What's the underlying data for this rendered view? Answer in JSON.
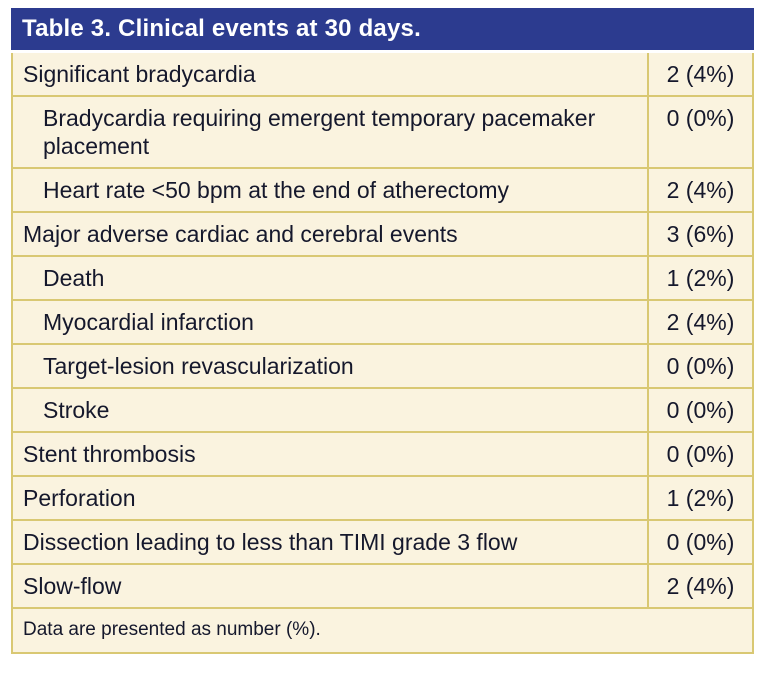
{
  "table": {
    "title": "Table 3. Clinical events at 30 days.",
    "columns": [
      "event",
      "count_percent"
    ],
    "rows": [
      {
        "label": "Significant bradycardia",
        "value": "2 (4%)",
        "indent": false
      },
      {
        "label": "Bradycardia requiring emergent temporary pacemaker placement",
        "value": "0 (0%)",
        "indent": true
      },
      {
        "label": "Heart rate <50 bpm at the end of atherectomy",
        "value": "2 (4%)",
        "indent": true
      },
      {
        "label": "Major adverse cardiac and cerebral events",
        "value": "3 (6%)",
        "indent": false
      },
      {
        "label": "Death",
        "value": "1 (2%)",
        "indent": true
      },
      {
        "label": "Myocardial infarction",
        "value": "2 (4%)",
        "indent": true
      },
      {
        "label": "Target-lesion revascularization",
        "value": "0 (0%)",
        "indent": true
      },
      {
        "label": "Stroke",
        "value": "0 (0%)",
        "indent": true
      },
      {
        "label": "Stent thrombosis",
        "value": "0 (0%)",
        "indent": false
      },
      {
        "label": "Perforation",
        "value": "1 (2%)",
        "indent": false
      },
      {
        "label": "Dissection leading to less than TIMI grade 3 flow",
        "value": "0 (0%)",
        "indent": false
      },
      {
        "label": "Slow-flow",
        "value": "2 (4%)",
        "indent": false
      }
    ],
    "footnote": "Data are presented as number (%)."
  },
  "colors": {
    "header_bg": "#2c3b8f",
    "header_text": "#ffffff",
    "row_bg": "#faf3df",
    "border": "#d9c873",
    "body_text": "#15182c"
  }
}
